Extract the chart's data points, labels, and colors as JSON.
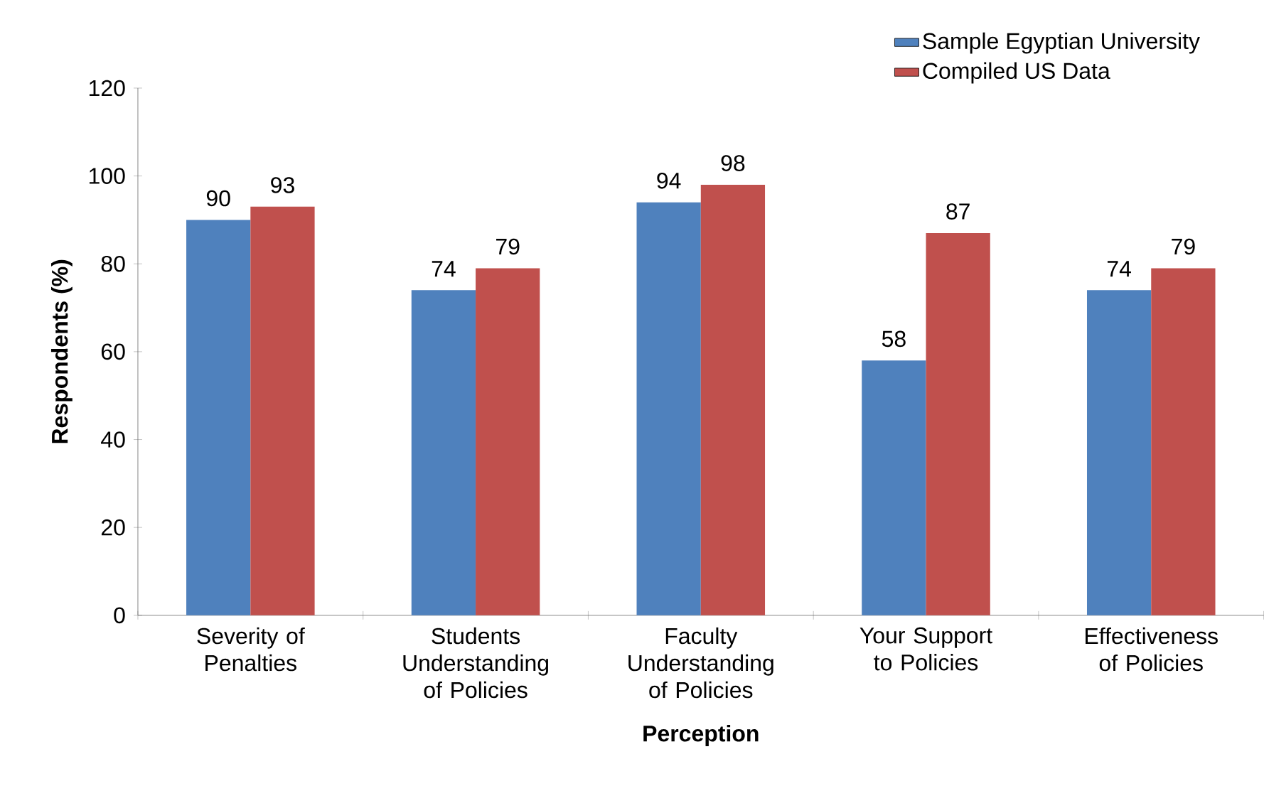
{
  "chart_data": {
    "type": "bar",
    "xlabel": "Perception",
    "ylabel": "Respondents (%)",
    "categories": [
      "Severity of Penalties",
      "Students Understanding of Policies",
      "Faculty Understanding of Policies",
      "Your Support to Policies",
      "Effectiveness of Policies"
    ],
    "series": [
      {
        "name": "Sample Egyptian University",
        "color": "#4f81bd",
        "values": [
          90,
          74,
          94,
          58,
          74
        ]
      },
      {
        "name": "Compiled US Data",
        "color": "#c0504d",
        "values": [
          93,
          79,
          98,
          87,
          79
        ]
      }
    ],
    "ylim": [
      0,
      120
    ],
    "yticks": [
      0,
      20,
      40,
      60,
      80,
      100,
      120
    ],
    "data_labels": true,
    "legend": "top right"
  }
}
